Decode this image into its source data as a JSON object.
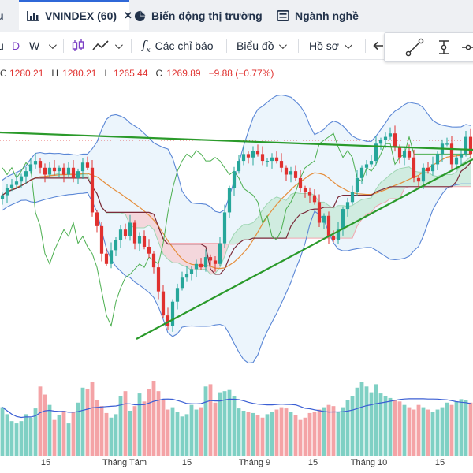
{
  "tabs": [
    {
      "label": "u",
      "active": false
    },
    {
      "label": "VNINDEX (60)",
      "active": true,
      "icon": "chart-icon",
      "close": "✕"
    },
    {
      "label": "Biến động thị trường",
      "active": false,
      "icon": "pie-chart-icon"
    },
    {
      "label": "Ngành nghề",
      "active": false,
      "icon": "list-icon"
    }
  ],
  "toolbar": {
    "interval_suffix": "u",
    "interval_d": "D",
    "interval_w": "W",
    "indicators_label": "Các chỉ báo",
    "charts_label": "Biểu đồ",
    "profile_label": "Hồ sơ"
  },
  "ohlc": {
    "open": "1280.21",
    "high_label": "H",
    "high": "1280.21",
    "low_label": "L",
    "low": "1265.44",
    "close_label": "C",
    "close": "1269.89",
    "change": "−9.88 (−0.77%)"
  },
  "colors": {
    "up": "#26a69a",
    "down": "#e0312f",
    "trendline": "#2a9a2a",
    "bollinger": "#5b87d6",
    "ma_orange": "#e58e3c",
    "ma_maroon": "#7a2b3a",
    "cloud_green": "#c9ead8",
    "cloud_red": "#f6d0d3",
    "band_fill": "#dcecf9"
  },
  "chart_data": {
    "type": "candlestick",
    "series": [
      {
        "name": "price",
        "values": [
          1246,
          1250,
          1252,
          1254,
          1257,
          1260,
          1264,
          1266,
          1262,
          1258,
          1262,
          1260,
          1262,
          1258,
          1262,
          1256,
          1260,
          1265,
          1262,
          1236,
          1228,
          1212,
          1206,
          1214,
          1220,
          1226,
          1222,
          1230,
          1218,
          1222,
          1216,
          1212,
          1204,
          1190,
          1176,
          1170,
          1184,
          1192,
          1198,
          1200,
          1203,
          1206,
          1204,
          1210,
          1208,
          1206,
          1218,
          1236,
          1250,
          1260,
          1266,
          1270,
          1268,
          1272,
          1270,
          1266,
          1266,
          1268,
          1266,
          1262,
          1258,
          1260,
          1256,
          1250,
          1248,
          1246,
          1242,
          1230,
          1234,
          1222,
          1220,
          1226,
          1238,
          1242,
          1248,
          1256,
          1262,
          1264,
          1266,
          1276,
          1278,
          1280,
          1282,
          1274,
          1268,
          1272,
          1268,
          1256,
          1254,
          1262,
          1260,
          1264,
          1270,
          1276,
          1276,
          1264,
          1268,
          1270,
          1280,
          1270
        ]
      },
      {
        "name": "volume",
        "values": [
          420,
          360,
          300,
          280,
          300,
          360,
          330,
          410,
          600,
          530,
          440,
          310,
          350,
          390,
          280,
          380,
          460,
          590,
          580,
          640,
          480,
          430,
          370,
          330,
          360,
          520,
          560,
          390,
          430,
          540,
          470,
          580,
          650,
          560,
          480,
          400,
          420,
          380,
          340,
          360,
          440,
          400,
          420,
          600,
          620,
          460,
          550,
          560,
          570,
          520,
          410,
          390,
          380,
          370,
          350,
          330,
          360,
          380,
          400,
          420,
          410,
          380,
          350,
          310,
          330,
          370,
          380,
          400,
          420,
          440,
          430,
          380,
          420,
          480,
          520,
          590,
          640,
          600,
          550,
          620,
          540,
          520,
          500,
          480,
          470,
          440,
          420,
          400,
          440,
          420,
          400,
          380,
          400,
          420,
          460,
          440,
          470,
          490,
          480,
          460
        ]
      }
    ],
    "x_tick_labels": [
      "15",
      "Tháng Tám",
      "15",
      "Tháng 9",
      "15",
      "Tháng 10",
      "15"
    ],
    "ylim": [
      1160,
      1300
    ]
  }
}
